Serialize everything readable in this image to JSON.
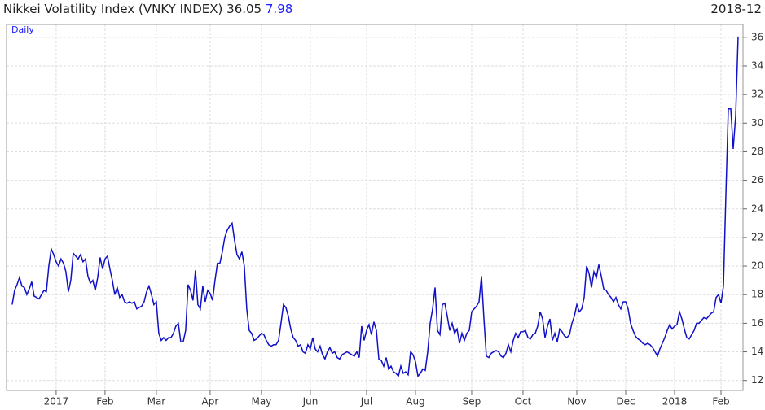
{
  "chart_data": {
    "type": "line",
    "title": "Nikkei Volatility Index (VNKY INDEX)",
    "last": 36.05,
    "change": 7.98,
    "date": "2018-12",
    "frequency": "Daily",
    "color": "#1010c8",
    "grid": true,
    "values": [
      17.3,
      18.3,
      18.7,
      19.2,
      18.6,
      18.5,
      18.0,
      18.4,
      18.9,
      17.9,
      17.8,
      17.7,
      18.0,
      18.3,
      18.2,
      20.0,
      21.2,
      20.8,
      20.3,
      20.0,
      20.5,
      20.2,
      19.6,
      18.2,
      19.0,
      20.9,
      20.7,
      20.5,
      20.8,
      20.3,
      20.5,
      19.3,
      18.8,
      19.0,
      18.3,
      19.2,
      20.6,
      19.8,
      20.5,
      20.7,
      19.8,
      19.0,
      18.0,
      18.5,
      17.8,
      18.0,
      17.5,
      17.4,
      17.5,
      17.4,
      17.5,
      17.0,
      17.1,
      17.2,
      17.5,
      18.2,
      18.6,
      18.0,
      17.3,
      17.5,
      15.3,
      14.8,
      15.0,
      14.8,
      15.0,
      15.0,
      15.3,
      15.8,
      16.0,
      14.7,
      14.7,
      15.5,
      18.7,
      18.3,
      17.6,
      19.7,
      17.3,
      17.0,
      18.6,
      17.5,
      18.3,
      18.1,
      17.6,
      19.0,
      20.2,
      20.2,
      21.0,
      22.0,
      22.5,
      22.8,
      23.0,
      21.8,
      20.8,
      20.5,
      21.0,
      20.0,
      17.0,
      15.5,
      15.3,
      14.8,
      14.9,
      15.1,
      15.3,
      15.2,
      14.8,
      14.5,
      14.4,
      14.5,
      14.5,
      14.8,
      16.0,
      17.3,
      17.1,
      16.5,
      15.6,
      15.0,
      14.8,
      14.4,
      14.5,
      14.0,
      13.9,
      14.5,
      14.2,
      15.0,
      14.2,
      14.0,
      14.4,
      13.8,
      13.5,
      14.0,
      14.3,
      13.9,
      14.0,
      13.6,
      13.5,
      13.8,
      13.9,
      14.0,
      13.9,
      13.8,
      13.7,
      14.0,
      13.6,
      15.8,
      14.8,
      15.5,
      15.9,
      15.2,
      16.1,
      15.5,
      13.5,
      13.4,
      13.0,
      13.6,
      12.8,
      13.0,
      12.6,
      12.5,
      12.3,
      13.0,
      12.5,
      12.6,
      12.4,
      14.0,
      13.8,
      13.3,
      12.3,
      12.5,
      12.8,
      12.7,
      14.0,
      16.0,
      17.0,
      18.5,
      15.5,
      15.2,
      17.3,
      17.4,
      16.5,
      15.5,
      16.0,
      15.3,
      15.6,
      14.6,
      15.3,
      14.8,
      15.3,
      15.5,
      16.8,
      17.0,
      17.2,
      17.5,
      19.3,
      16.3,
      13.7,
      13.6,
      13.9,
      14.0,
      14.1,
      14.0,
      13.7,
      13.6,
      13.9,
      14.5,
      14.0,
      14.8,
      15.3,
      15.0,
      15.4,
      15.4,
      15.5,
      15.0,
      14.9,
      15.2,
      15.3,
      15.8,
      16.8,
      16.3,
      15.0,
      15.8,
      16.3,
      14.8,
      15.3,
      14.7,
      15.6,
      15.4,
      15.1,
      15.0,
      15.2,
      16.0,
      16.5,
      17.3,
      16.8,
      17.0,
      17.8,
      20.0,
      19.5,
      18.5,
      19.6,
      19.2,
      20.1,
      19.3,
      18.4,
      18.3,
      18.0,
      17.8,
      17.5,
      17.8,
      17.3,
      17.0,
      17.5,
      17.5,
      17.0,
      16.0,
      15.5,
      15.1,
      14.9,
      14.8,
      14.6,
      14.5,
      14.6,
      14.5,
      14.3,
      14.0,
      13.7,
      14.2,
      14.6,
      15.0,
      15.5,
      15.9,
      15.6,
      15.8,
      15.9,
      16.8,
      16.3,
      15.6,
      15.0,
      14.9,
      15.2,
      15.5,
      16.0,
      16.0,
      16.2,
      16.4,
      16.3,
      16.5,
      16.7,
      16.8,
      17.8,
      18.0,
      17.4,
      18.6,
      25.0,
      31.0,
      31.0,
      28.2,
      30.5,
      36.05
    ],
    "xlim": [
      -2.3,
      299
    ],
    "xticks": [
      {
        "value": 18,
        "label": "2017"
      },
      {
        "value": 38,
        "label": "Feb"
      },
      {
        "value": 59,
        "label": "Mar"
      },
      {
        "value": 81,
        "label": "Apr"
      },
      {
        "value": 102,
        "label": "May"
      },
      {
        "value": 122,
        "label": "Jun"
      },
      {
        "value": 145,
        "label": "Jul"
      },
      {
        "value": 165,
        "label": "Aug"
      },
      {
        "value": 188,
        "label": "Sep"
      },
      {
        "value": 209,
        "label": "Oct"
      },
      {
        "value": 231,
        "label": "Nov"
      },
      {
        "value": 251,
        "label": "Dec"
      },
      {
        "value": 271,
        "label": "2018"
      },
      {
        "value": 290,
        "label": "Feb"
      }
    ],
    "ylim": [
      11.3,
      36.9
    ],
    "yticks": [
      12,
      14,
      16,
      18,
      20,
      22,
      24,
      26,
      28,
      30,
      32,
      34,
      36
    ]
  }
}
